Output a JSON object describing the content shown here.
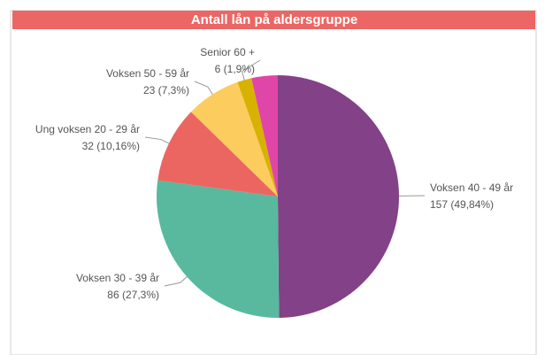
{
  "chart_data": {
    "type": "pie",
    "title": "Antall lån på aldersgruppe",
    "categories": [
      "Voksen 40 - 49 år",
      "Voksen 30 - 39 år",
      "Ung voksen 20 - 29 år",
      "Voksen 50 - 59 år",
      "Senior 60 +",
      null
    ],
    "values": [
      157,
      86,
      32,
      23,
      6,
      11
    ],
    "value_labels": [
      "157 (49,84%)",
      "86 (27,3%)",
      "32 (10,16%)",
      "23 (7,3%)",
      "6 (1,9%)",
      null
    ],
    "colors": [
      "#834187",
      "#58b99e",
      "#ec6661",
      "#fdcc5f",
      "#d8b200",
      "#e046a8"
    ]
  }
}
